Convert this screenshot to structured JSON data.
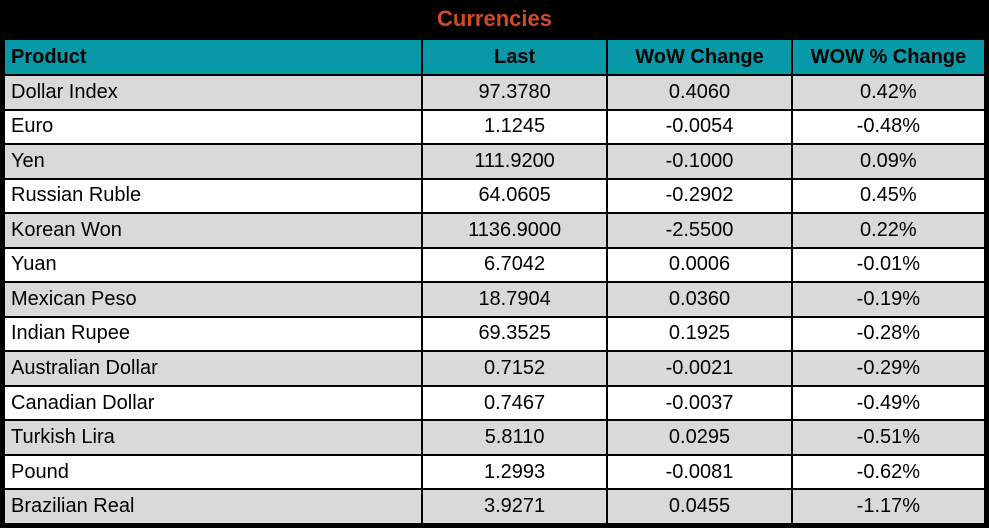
{
  "title": "Currencies",
  "colors": {
    "title_text": "#D14B27",
    "header_background": "#0899A8",
    "row_stripe": "#D9D9D9",
    "row_plain": "#FFFFFF",
    "frame_background": "#000000",
    "grid_border": "#000000",
    "body_text": "#000000"
  },
  "columns": [
    "Product",
    "Last",
    "WoW Change",
    "WOW % Change"
  ],
  "rows": [
    {
      "product": "Dollar Index",
      "last": "97.3780",
      "wow_change": "0.4060",
      "wow_pct_change": "0.42%"
    },
    {
      "product": "Euro",
      "last": "1.1245",
      "wow_change": "-0.0054",
      "wow_pct_change": "-0.48%"
    },
    {
      "product": "Yen",
      "last": "111.9200",
      "wow_change": "-0.1000",
      "wow_pct_change": "0.09%"
    },
    {
      "product": "Russian Ruble",
      "last": "64.0605",
      "wow_change": "-0.2902",
      "wow_pct_change": "0.45%"
    },
    {
      "product": "Korean Won",
      "last": "1136.9000",
      "wow_change": "-2.5500",
      "wow_pct_change": "0.22%"
    },
    {
      "product": "Yuan",
      "last": "6.7042",
      "wow_change": "0.0006",
      "wow_pct_change": "-0.01%"
    },
    {
      "product": "Mexican Peso",
      "last": "18.7904",
      "wow_change": "0.0360",
      "wow_pct_change": "-0.19%"
    },
    {
      "product": "Indian Rupee",
      "last": "69.3525",
      "wow_change": "0.1925",
      "wow_pct_change": "-0.28%"
    },
    {
      "product": "Australian Dollar",
      "last": "0.7152",
      "wow_change": "-0.0021",
      "wow_pct_change": "-0.29%"
    },
    {
      "product": "Canadian Dollar",
      "last": "0.7467",
      "wow_change": "-0.0037",
      "wow_pct_change": "-0.49%"
    },
    {
      "product": "Turkish Lira",
      "last": "5.8110",
      "wow_change": "0.0295",
      "wow_pct_change": "-0.51%"
    },
    {
      "product": "Pound",
      "last": "1.2993",
      "wow_change": "-0.0081",
      "wow_pct_change": "-0.62%"
    },
    {
      "product": "Brazilian Real",
      "last": "3.9271",
      "wow_change": "0.0455",
      "wow_pct_change": "-1.17%"
    }
  ],
  "chart_data": {
    "type": "table",
    "title": "Currencies",
    "columns": [
      "Product",
      "Last",
      "WoW Change",
      "WOW % Change"
    ],
    "categories": [
      "Dollar Index",
      "Euro",
      "Yen",
      "Russian Ruble",
      "Korean Won",
      "Yuan",
      "Mexican Peso",
      "Indian Rupee",
      "Australian Dollar",
      "Canadian Dollar",
      "Turkish Lira",
      "Pound",
      "Brazilian Real"
    ],
    "series": [
      {
        "name": "Last",
        "values": [
          97.378,
          1.1245,
          111.92,
          64.0605,
          1136.9,
          6.7042,
          18.7904,
          69.3525,
          0.7152,
          0.7467,
          5.811,
          1.2993,
          3.9271
        ]
      },
      {
        "name": "WoW Change",
        "values": [
          0.406,
          -0.0054,
          -0.1,
          -0.2902,
          -2.55,
          0.0006,
          0.036,
          0.1925,
          -0.0021,
          -0.0037,
          0.0295,
          -0.0081,
          0.0455
        ]
      },
      {
        "name": "WOW % Change (pct)",
        "values": [
          0.42,
          -0.48,
          0.09,
          0.45,
          0.22,
          -0.01,
          -0.19,
          -0.28,
          -0.29,
          -0.49,
          -0.51,
          -0.62,
          -1.17
        ]
      }
    ],
    "layout": {
      "zebra_striping": true,
      "header_fill": "#0899A8",
      "grid": true
    }
  }
}
